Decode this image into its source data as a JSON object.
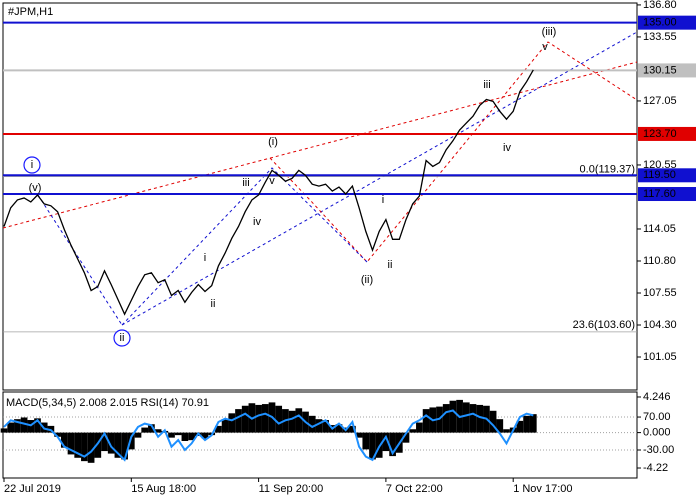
{
  "chart_data": [
    {
      "type": "line",
      "title": "#JPM,H1",
      "ylim": [
        97.7,
        137.3
      ],
      "yticks": [
        {
          "value": 136.8,
          "label": "136.80"
        },
        {
          "value": 133.55,
          "label": "133.55"
        },
        {
          "value": 127.05,
          "label": "127.05"
        },
        {
          "value": 120.55,
          "label": "120.55"
        },
        {
          "value": 114.05,
          "label": "114.05"
        },
        {
          "value": 110.8,
          "label": "110.80"
        },
        {
          "value": 107.55,
          "label": "107.55"
        },
        {
          "value": 104.3,
          "label": "104.30"
        },
        {
          "value": 101.05,
          "label": "101.05"
        }
      ],
      "series": [
        {
          "name": "JPM",
          "color": "#000000",
          "values": [
            114.3,
            116.2,
            117.0,
            117.2,
            116.8,
            117.5,
            116.6,
            116.4,
            115.8,
            114.0,
            112.4,
            111.0,
            109.6,
            107.8,
            108.2,
            109.8,
            108.4,
            106.9,
            105.4,
            106.8,
            108.2,
            109.4,
            109.6,
            108.6,
            108.9,
            107.3,
            107.8,
            106.6,
            107.6,
            108.4,
            107.7,
            108.3,
            110.3,
            111.6,
            113.1,
            114.3,
            115.8,
            117.0,
            117.5,
            118.8,
            120.0,
            119.5,
            118.9,
            119.2,
            120.0,
            119.5,
            118.6,
            118.4,
            118.6,
            117.9,
            118.3,
            117.6,
            118.4,
            116.2,
            113.8,
            111.9,
            113.8,
            115.0,
            113.0,
            113.0,
            115.0,
            116.6,
            117.4,
            121.0,
            120.4,
            120.8,
            122.1,
            123.0,
            124.1,
            124.8,
            125.5,
            126.6,
            127.2,
            127.0,
            126.0,
            125.2,
            126.0,
            128.0,
            129.0,
            130.2
          ]
        }
      ],
      "levels": [
        {
          "value": 135,
          "label": "135.00",
          "color": "#1010d0"
        },
        {
          "value": 130.15,
          "label": "130.15",
          "color": "#c0c0c0"
        },
        {
          "value": 123.7,
          "label": "123.70",
          "color": "#e00000"
        },
        {
          "value": 119.5,
          "label": "119.50",
          "color": "#1010d0"
        },
        {
          "value": 117.6,
          "label": "117.60",
          "color": "#1010d0"
        }
      ],
      "fib_levels": [
        {
          "value": 119.37,
          "label": "0.0(119.37)"
        },
        {
          "value": 103.6,
          "label": "23.6(103.60)"
        }
      ],
      "annotations": [
        {
          "text": "i",
          "color": "#1a1aff",
          "circled": true
        },
        {
          "text": "(v)",
          "color": "#e00000",
          "circled": false
        },
        {
          "text": "ii",
          "color": "#1a1aff",
          "circled": true
        },
        {
          "text": "(i)",
          "color": "#e00000",
          "circled": false
        },
        {
          "text": "(ii)",
          "color": "#e00000",
          "circled": false
        },
        {
          "text": "(iii)",
          "color": "#e00000",
          "circled": false
        },
        {
          "text": "v",
          "color": "#808080",
          "circled": false
        },
        {
          "text": "iii",
          "color": "#808080",
          "circled": false
        },
        {
          "text": "iv",
          "color": "#808080",
          "circled": false
        },
        {
          "text": "i",
          "color": "#808080",
          "circled": false
        },
        {
          "text": "ii",
          "color": "#808080",
          "circled": false
        },
        {
          "text": "iii",
          "color": "#808080",
          "circled": false
        },
        {
          "text": "iv",
          "color": "#808080",
          "circled": false
        },
        {
          "text": "v",
          "color": "#808080",
          "circled": false
        },
        {
          "text": "i",
          "color": "#808080",
          "circled": false
        },
        {
          "text": "ii",
          "color": "#808080",
          "circled": false
        }
      ]
    },
    {
      "type": "combo",
      "title": "MACD(5,34,5) 2.008 2.015 RSI(14) 70.91",
      "categories": [
        "22 Jul 2019",
        null,
        null,
        null,
        null,
        null,
        null,
        null,
        null,
        null,
        null,
        null,
        null,
        null,
        null,
        null,
        null,
        null,
        null,
        "15 Aug 18:00",
        null,
        null,
        null,
        null,
        null,
        null,
        null,
        null,
        null,
        null,
        null,
        null,
        null,
        null,
        null,
        null,
        null,
        null,
        "11 Sep 20:00",
        null,
        null,
        null,
        null,
        null,
        null,
        null,
        null,
        null,
        null,
        null,
        null,
        null,
        null,
        null,
        null,
        null,
        null,
        "7 Oct 22:00",
        null,
        null,
        null,
        null,
        null,
        null,
        null,
        null,
        null,
        null,
        null,
        null,
        null,
        null,
        null,
        null,
        null,
        null,
        "1 Nov 17:00",
        null,
        null,
        null
      ],
      "ylim": [
        -5.41,
        4.84
      ],
      "yticks": [
        4.246,
        {
          "value": 0,
          "label": "0.000"
        },
        -4.22
      ],
      "y2lim": [
        -115,
        146
      ],
      "y2ticks": [
        {
          "value": 70,
          "label": "70.00"
        },
        {
          "value": -30,
          "label": "-30.00"
        }
      ],
      "series": [
        {
          "name": "MACD",
          "color": "#000000",
          "values": [
            0.5,
            1.2,
            1.6,
            1.8,
            1.5,
            1.7,
            1.2,
            0.8,
            -0.5,
            -1.8,
            -2.6,
            -3.0,
            -3.4,
            -3.6,
            -3.0,
            -2.2,
            -2.5,
            -3.0,
            -3.2,
            -2.0,
            -0.6,
            0.6,
            1.0,
            0.4,
            0.2,
            -0.6,
            -0.3,
            -1.0,
            -0.9,
            -0.4,
            -0.7,
            -0.3,
            0.8,
            1.6,
            2.3,
            2.8,
            3.2,
            3.5,
            3.3,
            3.4,
            3.6,
            3.2,
            2.8,
            2.6,
            2.9,
            2.5,
            2.0,
            1.6,
            1.5,
            0.9,
            1.0,
            0.6,
            0.8,
            -0.6,
            -2.0,
            -3.2,
            -3.0,
            -2.2,
            -2.8,
            -2.4,
            -1.2,
            0.4,
            1.2,
            2.8,
            3.0,
            3.1,
            3.4,
            3.8,
            3.9,
            3.6,
            3.4,
            3.3,
            3.2,
            2.6,
            1.6,
            0.4,
            0.6,
            1.4,
            2.0,
            2.2
          ]
        },
        {
          "name": "RSI",
          "color": "#1e90ff",
          "axis": "y2",
          "values": [
            40,
            60,
            55,
            50,
            45,
            60,
            35,
            30,
            10,
            -20,
            -30,
            -40,
            -50,
            -35,
            -10,
            20,
            -20,
            -40,
            -60,
            10,
            40,
            50,
            45,
            10,
            30,
            -20,
            0,
            -30,
            -10,
            20,
            0,
            15,
            55,
            65,
            60,
            70,
            80,
            65,
            75,
            80,
            70,
            50,
            60,
            65,
            75,
            55,
            40,
            50,
            60,
            35,
            50,
            30,
            55,
            -20,
            -50,
            -60,
            -20,
            10,
            -40,
            -10,
            20,
            50,
            60,
            75,
            60,
            65,
            85,
            90,
            70,
            75,
            80,
            70,
            65,
            45,
            20,
            -10,
            30,
            70,
            80,
            75
          ]
        }
      ]
    }
  ]
}
